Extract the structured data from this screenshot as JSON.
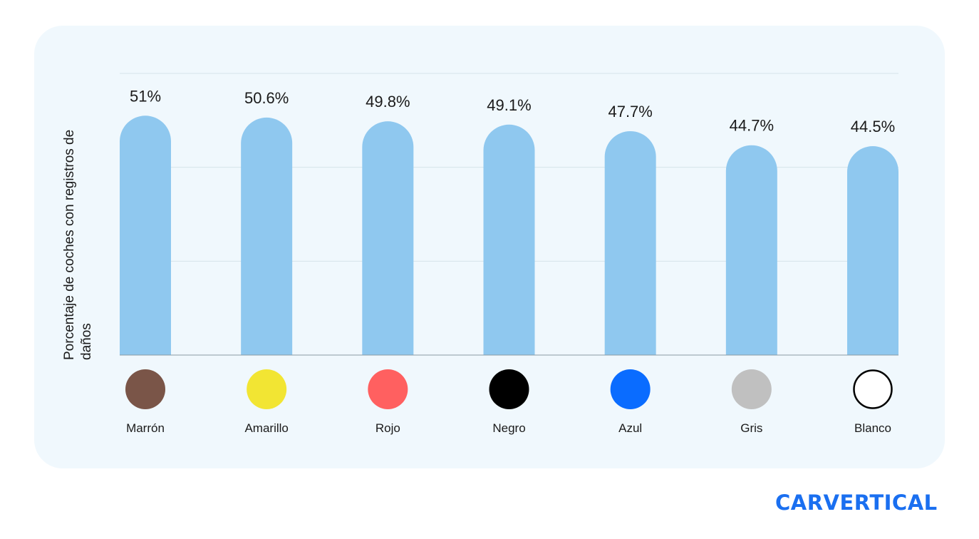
{
  "chart_data": {
    "type": "bar",
    "categories": [
      "Marrón",
      "Amarillo",
      "Rojo",
      "Negro",
      "Azul",
      "Gris",
      "Blanco"
    ],
    "values": [
      51,
      50.6,
      49.8,
      49.1,
      47.7,
      44.7,
      44.5
    ],
    "data_labels": [
      "51%",
      "50.6%",
      "49.8%",
      "49.1%",
      "47.7%",
      "44.7%",
      "44.5%"
    ],
    "category_colors": [
      "#7a5548",
      "#f2e533",
      "#ff6060",
      "#000000",
      "#0a6cff",
      "#c0c0c0",
      "#ffffff"
    ],
    "bar_color": "#8fc8ef",
    "ylabel": "Porcentaje de coches con registros de daños",
    "xlabel": "",
    "ylim": [
      0,
      60
    ],
    "grid": true,
    "gridlines": [
      20,
      40,
      60
    ]
  },
  "brand": {
    "logo": "CARVERTICAL",
    "color": "#1a6ff0"
  }
}
